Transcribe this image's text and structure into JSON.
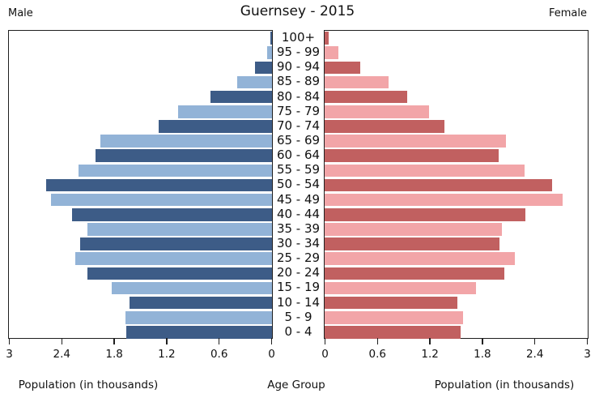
{
  "title": "Guernsey - 2015",
  "left_header": "Male",
  "right_header": "Female",
  "axis": {
    "left_ticks": [
      "3",
      "2.4",
      "1.8",
      "1.2",
      "0.6",
      "0"
    ],
    "right_ticks": [
      "0",
      "0.6",
      "1.2",
      "1.8",
      "2.4",
      "3"
    ],
    "left_xlabel": "Population (in thousands)",
    "center_xlabel": "Age Group",
    "right_xlabel": "Population (in thousands)"
  },
  "colors": {
    "male_dark": "#3d5c87",
    "male_light": "#92b3d7",
    "female_dark": "#c16060",
    "female_light": "#f2a5a8"
  },
  "chart_data": {
    "type": "bar",
    "subtype": "population-pyramid",
    "title": "Guernsey - 2015",
    "xlabel_left": "Population (in thousands)",
    "xlabel_center": "Age Group",
    "xlabel_right": "Population (in thousands)",
    "xlim": [
      0,
      3
    ],
    "grid": false,
    "categories": [
      "100+",
      "95 - 99",
      "90 - 94",
      "85 - 89",
      "80 - 84",
      "75 - 79",
      "70 - 74",
      "65 - 69",
      "60 - 64",
      "55 - 59",
      "50 - 54",
      "45 - 49",
      "40 - 44",
      "35 - 39",
      "30 - 34",
      "25 - 29",
      "20 - 24",
      "15 - 19",
      "10 - 14",
      "5 - 9",
      "0 - 4"
    ],
    "series": [
      {
        "name": "Male",
        "values": [
          0.02,
          0.06,
          0.19,
          0.4,
          0.7,
          1.07,
          1.3,
          1.96,
          2.02,
          2.21,
          2.58,
          2.53,
          2.29,
          2.11,
          2.19,
          2.25,
          2.11,
          1.83,
          1.63,
          1.68,
          1.67
        ]
      },
      {
        "name": "Female",
        "values": [
          0.05,
          0.16,
          0.41,
          0.73,
          0.94,
          1.19,
          1.37,
          2.07,
          1.99,
          2.29,
          2.6,
          2.72,
          2.3,
          2.03,
          2.0,
          2.18,
          2.06,
          1.73,
          1.52,
          1.58,
          1.56
        ]
      }
    ]
  }
}
